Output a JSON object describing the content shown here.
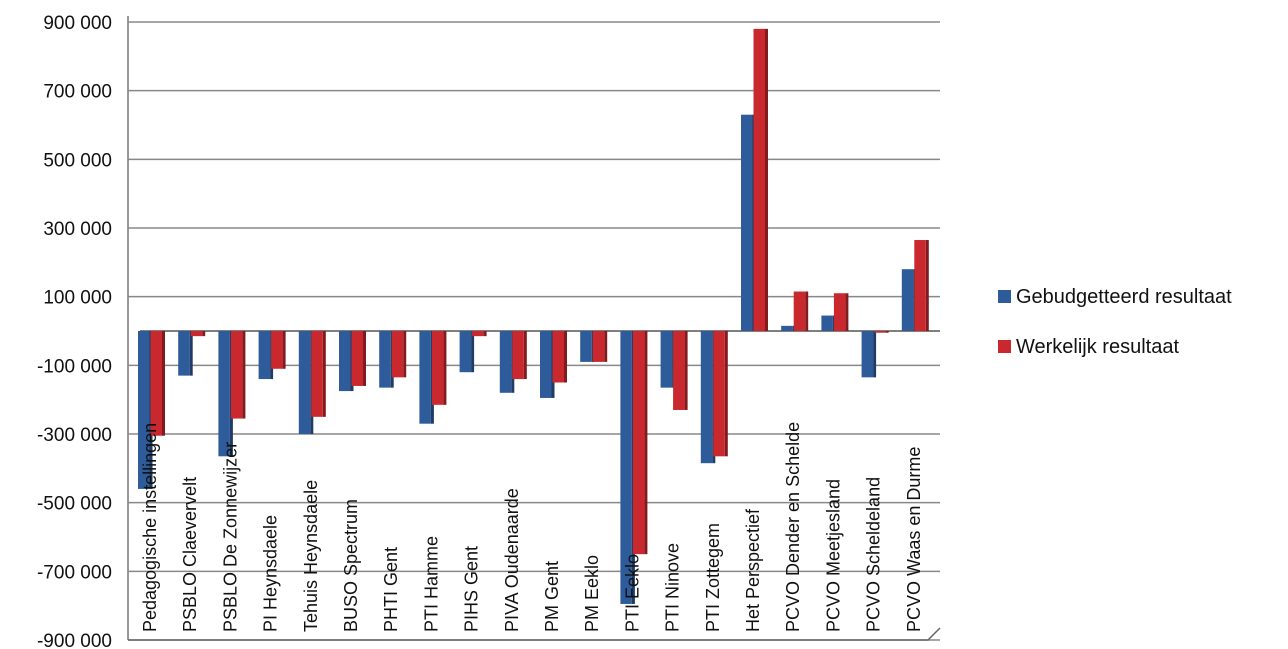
{
  "chart_data": {
    "type": "bar",
    "categories": [
      "Pedagogische instellingen",
      "PSBLO Claevervelt",
      "PSBLO De Zonnewijzer",
      "PI Heynsdaele",
      "Tehuis Heynsdaele",
      "BUSO Spectrum",
      "PHTI Gent",
      "PTI Hamme",
      "PIHS Gent",
      "PIVA Oudenaarde",
      "PM Gent",
      "PM Eeklo",
      "PTI Eeklo",
      "PTI Ninove",
      "PTI Zottegem",
      "Het Perspectief",
      "PCVO Dender en Schelde",
      "PCVO Meetjesland",
      "PCVO Scheldeland",
      "PCVO Waas en Durme"
    ],
    "series": [
      {
        "name": "Gebudgetteerd resultaat",
        "color": "#2E5C9A",
        "values": [
          -460000,
          -130000,
          -365000,
          -140000,
          -300000,
          -175000,
          -165000,
          -270000,
          -120000,
          -180000,
          -195000,
          -90000,
          -795000,
          -165000,
          -385000,
          630000,
          15000,
          45000,
          -135000,
          180000
        ]
      },
      {
        "name": "Werkelijk resultaat",
        "color": "#C8282E",
        "values": [
          -305000,
          -15000,
          -255000,
          -110000,
          -250000,
          -160000,
          -135000,
          -215000,
          -15000,
          -140000,
          -150000,
          -90000,
          -650000,
          -230000,
          -365000,
          880000,
          115000,
          110000,
          -5000,
          265000
        ]
      }
    ],
    "ylim": [
      -900000,
      900000
    ],
    "yticks": [
      "900 000",
      "700 000",
      "500 000",
      "300 000",
      "100 000",
      "-100 000",
      "-300 000",
      "-500 000",
      "-700 000",
      "-900 000"
    ],
    "ytick_values": [
      900000,
      700000,
      500000,
      300000,
      100000,
      -100000,
      -300000,
      -500000,
      -700000,
      -900000
    ],
    "grid": true,
    "legend_position": "right",
    "baseline": 0
  }
}
